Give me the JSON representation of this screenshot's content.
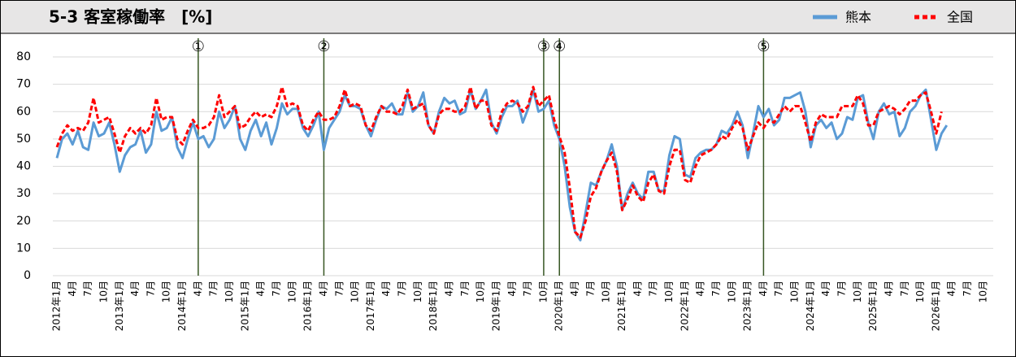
{
  "chart_data": {
    "type": "line",
    "title": "5-3 客室稼働率　[%]",
    "categories": [
      "2012年1月",
      null,
      null,
      "4月",
      null,
      null,
      "7月",
      null,
      null,
      "10月",
      null,
      null,
      "2013年1月",
      null,
      null,
      "4月",
      null,
      null,
      "7月",
      null,
      null,
      "10月",
      null,
      null,
      "2014年1月",
      null,
      null,
      "4月",
      null,
      null,
      "7月",
      null,
      null,
      "10月",
      null,
      null,
      "2015年1月",
      null,
      null,
      "4月",
      null,
      null,
      "7月",
      null,
      null,
      "10月",
      null,
      null,
      "2016年1月",
      null,
      null,
      "4月",
      null,
      null,
      "7月",
      null,
      null,
      "10月",
      null,
      null,
      "2017年1月",
      null,
      null,
      "4月",
      null,
      null,
      "7月",
      null,
      null,
      "10月",
      null,
      null,
      "2018年1月",
      null,
      null,
      "4月",
      null,
      null,
      "7月",
      null,
      null,
      "10月",
      null,
      null,
      "2019年1月",
      null,
      null,
      "4月",
      null,
      null,
      "7月",
      null,
      null,
      "10月",
      null,
      null,
      "2020年1月",
      null,
      null,
      "4月",
      null,
      null,
      "7月",
      null,
      null,
      "10月",
      null,
      null,
      "2021年1月",
      null,
      null,
      "4月",
      null,
      null,
      "7月",
      null,
      null,
      "10月",
      null,
      null,
      "2022年1月",
      null,
      null,
      "4月",
      null,
      null,
      "7月",
      null,
      null,
      "10月",
      null,
      null,
      "2023年1月",
      null,
      null,
      "4月",
      null,
      null,
      "7月",
      null,
      null,
      "10月",
      null,
      null,
      "2024年1月",
      null,
      null,
      "4月",
      null,
      null,
      "7月",
      null,
      null,
      "10月",
      null,
      null,
      "2025年1月",
      null,
      null,
      "4月",
      null,
      null,
      "7月",
      null,
      null,
      "10月",
      null,
      null,
      "2026年1月",
      null,
      null,
      "4月",
      null,
      null,
      "7月",
      null,
      null,
      "10月"
    ],
    "series": [
      {
        "name": "熊本",
        "color": "#5b9bd5",
        "dashed": false,
        "values": [
          43,
          50,
          52,
          48,
          53,
          47,
          46,
          56,
          51,
          52,
          56,
          48,
          38,
          44,
          47,
          48,
          53,
          45,
          48,
          60,
          53,
          54,
          58,
          47,
          43,
          50,
          56,
          50,
          51,
          47,
          50,
          60,
          54,
          57,
          62,
          50,
          46,
          53,
          57,
          51,
          56,
          48,
          54,
          63,
          59,
          61,
          61,
          54,
          51,
          55,
          60,
          46,
          54,
          57,
          60,
          66,
          62,
          62,
          61,
          55,
          51,
          57,
          62,
          61,
          63,
          59,
          59,
          67,
          60,
          62,
          67,
          55,
          52,
          60,
          65,
          63,
          64,
          59,
          60,
          68,
          61,
          64,
          68,
          56,
          52,
          58,
          62,
          62,
          64,
          56,
          61,
          68,
          60,
          61,
          64,
          55,
          50,
          40,
          25,
          16,
          13,
          23,
          34,
          33,
          38,
          42,
          48,
          40,
          24,
          30,
          34,
          30,
          28,
          38,
          38,
          31,
          31,
          44,
          51,
          50,
          37,
          36,
          43,
          45,
          46,
          46,
          48,
          53,
          52,
          55,
          60,
          55,
          43,
          52,
          62,
          58,
          61,
          55,
          57,
          65,
          65,
          66,
          67,
          60,
          47,
          55,
          57,
          54,
          56,
          50,
          52,
          58,
          57,
          65,
          66,
          56,
          50,
          60,
          63,
          59,
          60,
          51,
          54,
          60,
          62,
          66,
          68,
          57,
          46,
          52,
          55,
          null,
          null,
          null,
          null,
          null,
          null,
          null
        ]
      },
      {
        "name": "全国",
        "color": "#ff0000",
        "dashed": true,
        "values": [
          47,
          52,
          55,
          53,
          54,
          53,
          56,
          65,
          56,
          57,
          58,
          52,
          45,
          51,
          54,
          52,
          54,
          52,
          55,
          65,
          57,
          58,
          58,
          50,
          48,
          53,
          57,
          54,
          54,
          55,
          58,
          66,
          58,
          60,
          62,
          54,
          55,
          58,
          60,
          58,
          59,
          58,
          62,
          69,
          62,
          63,
          62,
          55,
          53,
          57,
          60,
          57,
          57,
          58,
          62,
          68,
          62,
          63,
          62,
          55,
          53,
          58,
          62,
          60,
          60,
          59,
          62,
          68,
          61,
          62,
          63,
          55,
          52,
          59,
          61,
          61,
          60,
          60,
          62,
          69,
          61,
          64,
          64,
          55,
          53,
          60,
          63,
          64,
          63,
          60,
          62,
          69,
          62,
          64,
          66,
          57,
          51,
          45,
          32,
          16,
          14,
          20,
          29,
          32,
          38,
          42,
          45,
          38,
          24,
          28,
          33,
          29,
          27,
          34,
          37,
          31,
          30,
          40,
          46,
          46,
          35,
          34,
          40,
          44,
          45,
          46,
          48,
          51,
          50,
          54,
          57,
          54,
          46,
          51,
          56,
          54,
          57,
          56,
          59,
          62,
          60,
          62,
          62,
          56,
          49,
          56,
          59,
          58,
          58,
          58,
          62,
          62,
          62,
          66,
          63,
          55,
          55,
          60,
          61,
          62,
          61,
          59,
          61,
          64,
          64,
          66,
          67,
          60,
          52,
          60,
          null,
          null,
          null,
          null,
          null,
          null,
          null,
          null
        ]
      }
    ],
    "annotations": [
      {
        "text": "①",
        "category_index": 27
      },
      {
        "text": "②",
        "category_index": 51
      },
      {
        "text": "③",
        "category_index": 93
      },
      {
        "text": "④",
        "category_index": 96
      },
      {
        "text": "⑤",
        "category_index": 135
      }
    ],
    "annotation_color": "#375623",
    "ylim": [
      0,
      80
    ],
    "yticks": [
      0,
      10,
      20,
      30,
      40,
      50,
      60,
      70,
      80
    ],
    "grid": true
  }
}
